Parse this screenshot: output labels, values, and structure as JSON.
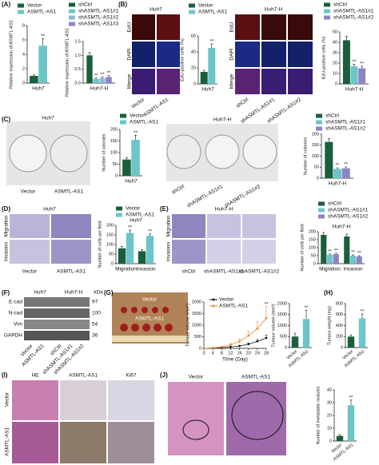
{
  "chart_data": [
    {
      "type": "bar",
      "ylabel": "Relative expression of ASMTL-AS1",
      "categories": [
        "Huh7"
      ],
      "series": [
        {
          "name": "Vector",
          "color": "#1b5e3b",
          "values": [
            1
          ],
          "errors": [
            0.15
          ],
          "annotations": [
            null
          ]
        },
        {
          "name": "ASMTL-AS1",
          "color": "#6cc5c9",
          "values": [
            5.2
          ],
          "errors": [
            1.0
          ],
          "annotations": [
            "**"
          ]
        }
      ],
      "ylim": [
        0,
        8
      ],
      "yticks": [
        0,
        2,
        4,
        6,
        8
      ]
    },
    {
      "type": "bar",
      "ylabel": "Relative expression of ASMTL-AS1",
      "categories": [
        "Huh7-H"
      ],
      "series": [
        {
          "name": "shCtrl",
          "color": "#1b5e3b",
          "values": [
            1.0
          ],
          "errors": [
            0.1
          ],
          "annotations": [
            null
          ]
        },
        {
          "name": "shASMTL-AS1#1",
          "color": "#6cc5c9",
          "values": [
            0.15
          ],
          "errors": [
            0.03
          ],
          "annotations": [
            "**"
          ]
        },
        {
          "name": "shASMTL-AS1#2",
          "color": "#8fb8e0",
          "values": [
            0.18
          ],
          "errors": [
            0.04
          ],
          "annotations": [
            "**"
          ]
        },
        {
          "name": "shASMTL-AS1#3",
          "color": "#8d83c4",
          "values": [
            0.22
          ],
          "errors": [
            0.05
          ],
          "annotations": [
            "**"
          ]
        }
      ],
      "ylim": [
        0,
        1.5
      ],
      "yticks": [
        {
          "value": 0,
          "label": "0.0"
        },
        {
          "value": 0.5,
          "label": "0.5"
        },
        {
          "value": 1,
          "label": "1.0"
        },
        {
          "value": 1.5,
          "label": "1.5"
        }
      ]
    },
    {
      "type": "bar",
      "ylabel": "EdU-positive cells (%)",
      "categories": [
        "Huh7"
      ],
      "series": [
        {
          "name": "Vector",
          "color": "#1b5e3b",
          "values": [
            15
          ],
          "errors": [
            2
          ],
          "annotations": [
            null
          ]
        },
        {
          "name": "ASMTL-AS1",
          "color": "#6cc5c9",
          "values": [
            45
          ],
          "errors": [
            5
          ],
          "annotations": [
            "**"
          ]
        }
      ],
      "ylim": [
        0,
        60
      ],
      "yticks": [
        0,
        20,
        40,
        60
      ]
    },
    {
      "type": "bar",
      "ylabel": "EdU-positive cells (%)",
      "categories": [
        "Huh7-H"
      ],
      "series": [
        {
          "name": "shCtrl",
          "color": "#1b5e3b",
          "values": [
            42
          ],
          "errors": [
            4
          ],
          "annotations": [
            null
          ]
        },
        {
          "name": "shASMTL-AS1#1",
          "color": "#6cc5c9",
          "values": [
            17
          ],
          "errors": [
            2
          ],
          "annotations": [
            "**"
          ]
        },
        {
          "name": "shASMTL-AS1#2",
          "color": "#8d83c4",
          "values": [
            15
          ],
          "errors": [
            2
          ],
          "annotations": [
            "**"
          ]
        }
      ],
      "ylim": [
        0,
        50
      ],
      "yticks": [
        0,
        10,
        20,
        30,
        40,
        50
      ]
    },
    {
      "type": "bar",
      "ylabel": "Number of colonies",
      "categories": [
        "Huh7"
      ],
      "series": [
        {
          "name": "Vector",
          "color": "#1b5e3b",
          "values": [
            70
          ],
          "errors": [
            8
          ],
          "annotations": [
            null
          ]
        },
        {
          "name": "ASMTL-AS1",
          "color": "#6cc5c9",
          "values": [
            155
          ],
          "errors": [
            20
          ],
          "annotations": [
            "**"
          ]
        }
      ],
      "ylim": [
        0,
        200
      ],
      "yticks": [
        0,
        50,
        100,
        150,
        200
      ]
    },
    {
      "type": "bar",
      "ylabel": "Number of colonies",
      "categories": [
        "Huh7-H"
      ],
      "series": [
        {
          "name": "shCtrl",
          "color": "#1b5e3b",
          "values": [
            165
          ],
          "errors": [
            15
          ],
          "annotations": [
            null
          ]
        },
        {
          "name": "shASMTL-AS1#1",
          "color": "#6cc5c9",
          "values": [
            42
          ],
          "errors": [
            5
          ],
          "annotations": [
            "**"
          ]
        },
        {
          "name": "shASMTL-AS1#2",
          "color": "#8d83c4",
          "values": [
            45
          ],
          "errors": [
            6
          ],
          "annotations": [
            "**"
          ]
        }
      ],
      "ylim": [
        0,
        200
      ],
      "yticks": [
        0,
        50,
        100,
        150,
        200
      ]
    },
    {
      "type": "bar",
      "title": "Huh7",
      "ylabel": "Number of cells per field",
      "categories": [
        "Migration",
        "Invasion"
      ],
      "series": [
        {
          "name": "Vector",
          "color": "#1b5e3b",
          "values": [
            80,
            65
          ],
          "errors": [
            10,
            8
          ],
          "annotations": [
            null,
            null
          ]
        },
        {
          "name": "ASMTL-AS1",
          "color": "#6cc5c9",
          "values": [
            160,
            145
          ],
          "errors": [
            15,
            10
          ],
          "annotations": [
            "**",
            "**"
          ]
        }
      ],
      "ylim": [
        0,
        200
      ],
      "yticks": [
        0,
        50,
        100,
        150,
        200
      ]
    },
    {
      "type": "bar",
      "title": "Huh7-H",
      "ylabel": "Number of cells per field",
      "categories": [
        "Migration",
        "Invasion"
      ],
      "series": [
        {
          "name": "shCtrl",
          "color": "#1b5e3b",
          "values": [
            180,
            170
          ],
          "errors": [
            15,
            15
          ],
          "annotations": [
            null,
            null
          ]
        },
        {
          "name": "shASMTL-AS1#1",
          "color": "#6cc5c9",
          "values": [
            55,
            50
          ],
          "errors": [
            5,
            5
          ],
          "annotations": [
            "**",
            "**"
          ]
        },
        {
          "name": "shASMTL-AS1#2",
          "color": "#8d83c4",
          "values": [
            60,
            45
          ],
          "errors": [
            6,
            5
          ],
          "annotations": [
            "**",
            "**"
          ]
        }
      ],
      "ylim": [
        0,
        200
      ],
      "yticks": [
        0,
        50,
        100,
        150,
        200
      ]
    },
    {
      "type": "line",
      "ylabel": "Tumour volume (mm³)",
      "xlabel": "Time (Day)",
      "x": [
        0,
        4,
        8,
        12,
        16,
        20,
        24,
        28
      ],
      "series": [
        {
          "name": "Vector",
          "color": "#111111",
          "values": [
            0,
            10,
            30,
            60,
            100,
            180,
            300,
            450
          ],
          "errors": [
            0,
            5,
            10,
            20,
            30,
            50,
            80,
            120
          ],
          "annotations": [
            null,
            null,
            null,
            null,
            null,
            null,
            null,
            null
          ]
        },
        {
          "name": "ASMTL-AS1",
          "color": "#e8862a",
          "values": [
            0,
            20,
            60,
            150,
            300,
            550,
            850,
            1300
          ],
          "errors": [
            0,
            10,
            30,
            60,
            100,
            180,
            300,
            500
          ],
          "annotations": [
            null,
            null,
            null,
            null,
            null,
            null,
            null,
            "**"
          ]
        }
      ],
      "xlim": [
        0,
        28
      ],
      "xticks": [
        0,
        4,
        8,
        12,
        16,
        20,
        24,
        28
      ],
      "ylim": [
        0,
        2000
      ],
      "yticks": [
        0,
        500,
        1000,
        1500,
        2000
      ]
    },
    {
      "type": "bar",
      "ylabel": "Tumour volume (mm³)",
      "categories": [
        "Vector",
        "ASMTL-AS1"
      ],
      "values": [
        500,
        1300
      ],
      "errors": [
        150,
        400
      ],
      "colors": [
        "#1b5e3b",
        "#6cc5c9"
      ],
      "annotations": [
        null,
        "**"
      ],
      "ylim": [
        0,
        2000
      ],
      "yticks": [
        0,
        500,
        1000,
        1500,
        2000
      ]
    },
    {
      "type": "bar",
      "ylabel": "Tumour weight (mg)",
      "categories": [
        "Vector",
        "ASMTL-AS1"
      ],
      "values": [
        200,
        530
      ],
      "errors": [
        30,
        80
      ],
      "colors": [
        "#1b5e3b",
        "#6cc5c9"
      ],
      "annotations": [
        null,
        "**"
      ],
      "ylim": [
        0,
        800
      ],
      "yticks": [
        0,
        200,
        400,
        600,
        800
      ]
    },
    {
      "type": "bar",
      "ylabel": "Number of metastatic nodules",
      "categories": [
        "Vector",
        "ASMTL-AS1"
      ],
      "values": [
        4,
        28
      ],
      "errors": [
        1,
        4
      ],
      "colors": [
        "#1b5e3b",
        "#6cc5c9"
      ],
      "annotations": [
        null,
        "**"
      ],
      "ylim": [
        0,
        40
      ],
      "yticks": [
        0,
        10,
        20,
        30,
        40
      ]
    }
  ],
  "panel_labels": [
    "(A)",
    "(B)",
    "(C)",
    "(D)",
    "(E)",
    "(F)",
    "(G)",
    "(H)",
    "(I)",
    "(J)"
  ],
  "image_text": {
    "B": [
      "Huh7",
      "EdU",
      "DAPI",
      "Merge",
      "Vector",
      "ASMTL-AS1",
      "Huh7-H",
      "EdU",
      "DAPI",
      "Merge",
      "shCtrl",
      "shASMTL-AS1#1",
      "shASMTL-AS1#2"
    ],
    "C": [
      "Huh7",
      "Vector",
      "ASMTL-AS1",
      "Huh7-H",
      "shCtrl",
      "shASMTL-AS1#1",
      "shASMTL-AS1#2"
    ],
    "D": [
      "Huh7",
      "Migration",
      "Invasion",
      "Vector",
      "ASMTL-AS1"
    ],
    "E": [
      "Huh7-H",
      "Migration",
      "Invasion",
      "shCtrl",
      "shASMTL-AS1#1",
      "shASMTL-AS1#2"
    ],
    "F": [
      "Huh7",
      "Huh7-H",
      "kDa",
      "E-cad",
      "N-cad",
      "Vim",
      "GAPDH",
      97,
      100,
      54,
      36,
      "Vector",
      "ASMTL-AS1",
      "shCtrl",
      "shASMTL-AS1#1",
      "shASMTL-AS1#2"
    ],
    "G": [
      "Vector",
      "ASMTL-AS1"
    ],
    "I": [
      "HE",
      "ASMTL-AS1",
      "Ki67",
      "Vector",
      "ASMTL-AS1"
    ],
    "J": [
      "Vector",
      "ASMTL-AS1"
    ]
  }
}
